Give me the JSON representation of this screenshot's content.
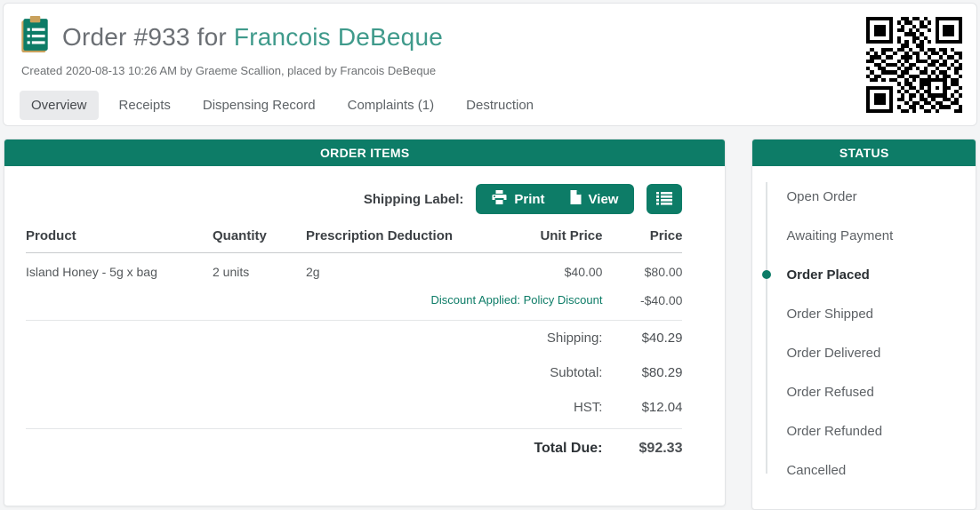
{
  "header": {
    "title_prefix": "Order #933 for",
    "customer_name": "Francois DeBeque",
    "created_line": "Created 2020-08-13 10:26 AM by Graeme Scallion, placed by Francois DeBeque"
  },
  "tabs": [
    {
      "label": "Overview",
      "active": true
    },
    {
      "label": "Receipts",
      "active": false
    },
    {
      "label": "Dispensing Record",
      "active": false
    },
    {
      "label": "Complaints (1)",
      "active": false
    },
    {
      "label": "Destruction",
      "active": false
    }
  ],
  "colors": {
    "primary_teal": "#0d7c67",
    "accent_teal": "#3f9a8b",
    "page_background": "#f4f5f6"
  },
  "order_items": {
    "panel_title": "ORDER ITEMS",
    "shipping": {
      "label": "Shipping Label:",
      "print_button": "Print",
      "view_button": "View",
      "extra_button_icon": "list-icon"
    },
    "columns": [
      "Product",
      "Quantity",
      "Prescription Deduction",
      "Unit Price",
      "Price"
    ],
    "rows": [
      {
        "product": "Island Honey - 5g x bag",
        "quantity": "2 units",
        "deduction": "2g",
        "unit_price": "$40.00",
        "price": "$80.00"
      }
    ],
    "discount": {
      "label": "Discount Applied: Policy Discount",
      "amount": "-$40.00"
    },
    "totals": [
      {
        "label": "Shipping:",
        "value": "$40.29"
      },
      {
        "label": "Subtotal:",
        "value": "$80.29"
      },
      {
        "label": "HST:",
        "value": "$12.04"
      }
    ],
    "total_due": {
      "label": "Total Due:",
      "value": "$92.33"
    }
  },
  "status": {
    "panel_title": "STATUS",
    "current": "Order Placed",
    "items": [
      {
        "label": "Open Order",
        "active": false
      },
      {
        "label": "Awaiting Payment",
        "active": false
      },
      {
        "label": "Order Placed",
        "active": true
      },
      {
        "label": "Order Shipped",
        "active": false
      },
      {
        "label": "Order Delivered",
        "active": false
      },
      {
        "label": "Order Refused",
        "active": false
      },
      {
        "label": "Order Refunded",
        "active": false
      },
      {
        "label": "Cancelled",
        "active": false
      }
    ]
  },
  "qr": {
    "modules": [
      "1111111001101101001111111",
      "1000001010110010101000001",
      "1011101001001011001011101",
      "1011101011010100101011101",
      "1011101000111010001011101",
      "1000001010001101001000001",
      "1111111010101010101111111",
      "0000000001100110000000000",
      "0100111011010010110110100",
      "1010100100101101011010011",
      "0111011001110100100101101",
      "1100100010100111011010010",
      "0011011101011000110110101",
      "1001100010110101001001011",
      "0100111101100011010110010",
      "1011000011011100101011001",
      "0110101100101011111110110",
      "0000000010110011100010110",
      "1111111001011010101011001",
      "1000001010100101100010010",
      "1011101001011010111110101",
      "1011101011010011010011010",
      "1011101000101101101100110",
      "1000001010011010010111001",
      "1111111001101001101000011"
    ]
  }
}
